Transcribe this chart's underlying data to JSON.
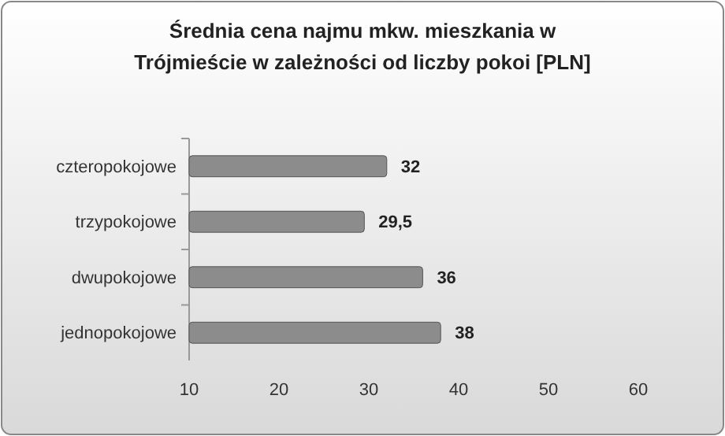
{
  "chart_data": {
    "type": "bar",
    "orientation": "horizontal",
    "title": "Średnia cena najmu mkw. mieszkania w Trójmieście w zależności od liczby pokoi [PLN]",
    "categories": [
      "czteropokojowe",
      "trzypokojowe",
      "dwupokojowe",
      "jednopokojowe"
    ],
    "values": [
      32,
      29.5,
      36,
      38
    ],
    "value_labels": [
      "32",
      "29,5",
      "36",
      "38"
    ],
    "color": "#8c8c8c",
    "xlim": [
      10,
      60
    ],
    "xticks": [
      10,
      20,
      30,
      40,
      50,
      60
    ],
    "grid": false
  }
}
